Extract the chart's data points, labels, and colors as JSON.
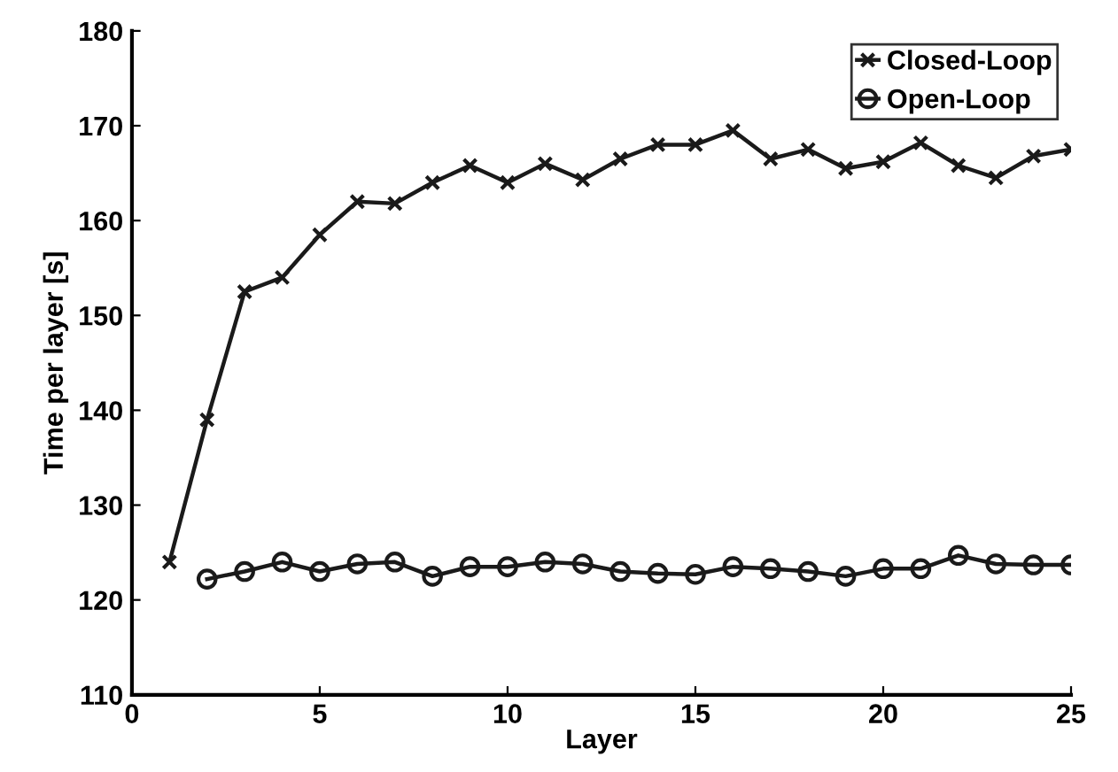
{
  "chart_data": {
    "type": "line",
    "xlabel": "Layer",
    "ylabel": "Time per layer [s]",
    "xlim": [
      0,
      25
    ],
    "xticks": [
      0,
      5,
      10,
      15,
      20,
      25
    ],
    "ylim": [
      110,
      180
    ],
    "yticks": [
      110,
      120,
      130,
      140,
      150,
      160,
      170,
      180
    ],
    "grid": false,
    "legend": "top right",
    "line_style": "solid",
    "series": [
      {
        "name": "Closed-Loop",
        "color": "#1a1a1a",
        "marker": "cross",
        "x": [
          1,
          2,
          3,
          4,
          5,
          6,
          7,
          8,
          9,
          10,
          11,
          12,
          13,
          14,
          15,
          16,
          17,
          18,
          19,
          20,
          21,
          22,
          23,
          24,
          25
        ],
        "values": [
          124,
          139,
          152.5,
          154,
          158.5,
          162,
          161.8,
          164,
          165.8,
          164,
          166,
          164.3,
          166.5,
          168,
          168,
          169.5,
          166.5,
          167.5,
          165.5,
          166.2,
          168.2,
          165.8,
          164.5,
          166.8,
          167.5
        ]
      },
      {
        "name": "Open-Loop",
        "color": "#1a1a1a",
        "marker": "circle",
        "x": [
          2,
          3,
          4,
          5,
          6,
          7,
          8,
          9,
          10,
          11,
          12,
          13,
          14,
          15,
          16,
          17,
          18,
          19,
          20,
          21,
          22,
          23,
          24,
          25
        ],
        "values": [
          122.2,
          123,
          124,
          123,
          123.8,
          124,
          122.5,
          123.5,
          123.5,
          124,
          123.8,
          123,
          122.8,
          122.7,
          123.5,
          123.3,
          123,
          122.5,
          123.3,
          123.3,
          124.7,
          123.8,
          123.7,
          123.7
        ]
      }
    ]
  }
}
